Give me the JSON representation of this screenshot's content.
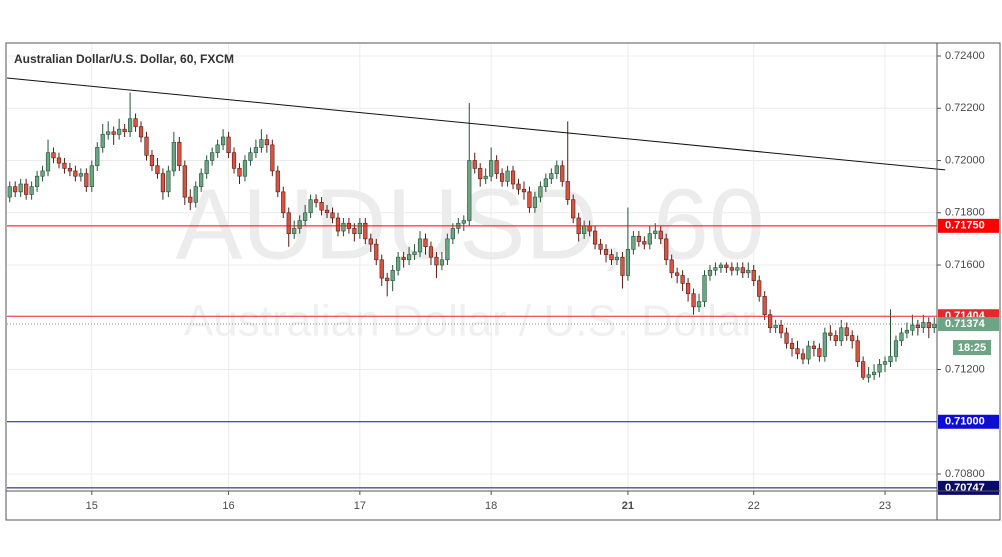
{
  "chart_data": {
    "type": "candlestick",
    "title": "Australian Dollar/U.S. Dollar, 60, FXCM",
    "watermark": "AUDUSD, 60",
    "watermark_subtitle": "Australian Dollar / U.S. Dollar",
    "up_color": "#6ba583",
    "up_border": "#225437",
    "down_color": "#d75442",
    "down_border": "#5b1a13",
    "ylim": [
      0.70735,
      0.72446
    ],
    "yticks": [
      {
        "value": 0.724,
        "label": "0.72400"
      },
      {
        "value": 0.722,
        "label": "0.72200"
      },
      {
        "value": 0.72,
        "label": "0.72000"
      },
      {
        "value": 0.718,
        "label": "0.71800"
      },
      {
        "value": 0.716,
        "label": "0.71600"
      },
      {
        "value": 0.712,
        "label": "0.71200"
      },
      {
        "value": 0.708,
        "label": "0.70800"
      }
    ],
    "grid": true,
    "levels": [
      {
        "value": 0.7175,
        "label": "0.71750",
        "color": "#ff0000"
      },
      {
        "value": 0.71404,
        "label": "0.71404",
        "color": "#e8272b"
      },
      {
        "value": 0.71,
        "label": "0.71000",
        "color": "#0d0dd4"
      },
      {
        "value": 0.70747,
        "label": "0.70747",
        "color": "#0a0a6e"
      }
    ],
    "last": {
      "value": 0.71374,
      "label": "0.71374",
      "timer": "18:25",
      "color": "#6ba583"
    },
    "trendline": {
      "x": [
        -0.5,
        171
      ],
      "values": [
        0.72316,
        0.71964
      ],
      "color": "#111111"
    },
    "categories": [
      null,
      null,
      null,
      null,
      null,
      null,
      null,
      null,
      null,
      null,
      null,
      null,
      null,
      null,
      null,
      "15",
      null,
      null,
      null,
      null,
      null,
      null,
      null,
      null,
      null,
      null,
      null,
      null,
      null,
      null,
      null,
      null,
      null,
      null,
      null,
      null,
      null,
      null,
      null,
      null,
      "16",
      null,
      null,
      null,
      null,
      null,
      null,
      null,
      null,
      null,
      null,
      null,
      null,
      null,
      null,
      null,
      null,
      null,
      null,
      null,
      null,
      null,
      null,
      null,
      "17",
      null,
      null,
      null,
      null,
      null,
      null,
      null,
      null,
      null,
      null,
      null,
      null,
      null,
      null,
      null,
      null,
      null,
      null,
      null,
      null,
      null,
      null,
      null,
      "18",
      null,
      null,
      null,
      null,
      null,
      null,
      null,
      null,
      null,
      null,
      null,
      null,
      null,
      null,
      null,
      null,
      null,
      null,
      null,
      null,
      null,
      null,
      null,
      null,
      "21",
      null,
      null,
      null,
      null,
      null,
      null,
      null,
      null,
      null,
      null,
      null,
      null,
      null,
      null,
      null,
      null,
      null,
      null,
      null,
      null,
      null,
      null,
      "22",
      null,
      null,
      null,
      null,
      null,
      null,
      null,
      null,
      null,
      null,
      null,
      null,
      null,
      null,
      null,
      null,
      null,
      null,
      null,
      null,
      null,
      null,
      null,
      "23",
      null,
      null,
      null,
      null,
      null,
      null,
      null,
      null,
      null
    ],
    "ohlc": [
      [
        0.7186,
        0.7192,
        0.7184,
        0.719
      ],
      [
        0.719,
        0.7192,
        0.7186,
        0.7188
      ],
      [
        0.7188,
        0.7193,
        0.7186,
        0.7191
      ],
      [
        0.7191,
        0.7193,
        0.7185,
        0.7187
      ],
      [
        0.7187,
        0.7192,
        0.7185,
        0.719
      ],
      [
        0.719,
        0.7196,
        0.7188,
        0.7194
      ],
      [
        0.7194,
        0.7198,
        0.7192,
        0.7196
      ],
      [
        0.7196,
        0.7208,
        0.7194,
        0.7203
      ],
      [
        0.7203,
        0.7205,
        0.7199,
        0.7201
      ],
      [
        0.7201,
        0.7203,
        0.7197,
        0.7199
      ],
      [
        0.7199,
        0.7201,
        0.7195,
        0.7197
      ],
      [
        0.7197,
        0.7199,
        0.7194,
        0.7196
      ],
      [
        0.7196,
        0.7198,
        0.7192,
        0.7194
      ],
      [
        0.7194,
        0.7197,
        0.7192,
        0.7195
      ],
      [
        0.7195,
        0.7197,
        0.7188,
        0.719
      ],
      [
        0.719,
        0.72,
        0.7188,
        0.7198
      ],
      [
        0.7198,
        0.7207,
        0.7196,
        0.7205
      ],
      [
        0.7205,
        0.7214,
        0.7203,
        0.721
      ],
      [
        0.721,
        0.7215,
        0.7208,
        0.7211
      ],
      [
        0.7211,
        0.7213,
        0.7206,
        0.721
      ],
      [
        0.721,
        0.7216,
        0.7208,
        0.7212
      ],
      [
        0.7212,
        0.7214,
        0.7209,
        0.7211
      ],
      [
        0.7211,
        0.7226,
        0.7209,
        0.7216
      ],
      [
        0.7216,
        0.7218,
        0.7211,
        0.7213
      ],
      [
        0.7213,
        0.7215,
        0.7207,
        0.7209
      ],
      [
        0.7209,
        0.7211,
        0.72,
        0.7202
      ],
      [
        0.7202,
        0.7204,
        0.7196,
        0.7198
      ],
      [
        0.7198,
        0.7201,
        0.7193,
        0.7195
      ],
      [
        0.7195,
        0.7197,
        0.7185,
        0.7188
      ],
      [
        0.7188,
        0.7198,
        0.7186,
        0.7196
      ],
      [
        0.7196,
        0.7211,
        0.7194,
        0.7207
      ],
      [
        0.7207,
        0.7209,
        0.7196,
        0.7198
      ],
      [
        0.7198,
        0.72,
        0.7183,
        0.7186
      ],
      [
        0.7186,
        0.7189,
        0.7181,
        0.7184
      ],
      [
        0.7184,
        0.7192,
        0.7182,
        0.719
      ],
      [
        0.719,
        0.7197,
        0.7188,
        0.7195
      ],
      [
        0.7195,
        0.7202,
        0.7193,
        0.72
      ],
      [
        0.72,
        0.7205,
        0.7198,
        0.7203
      ],
      [
        0.7203,
        0.7208,
        0.7201,
        0.7206
      ],
      [
        0.7206,
        0.7212,
        0.7204,
        0.7209
      ],
      [
        0.7209,
        0.7211,
        0.7201,
        0.7203
      ],
      [
        0.7203,
        0.7205,
        0.7195,
        0.7197
      ],
      [
        0.7197,
        0.7199,
        0.7191,
        0.7194
      ],
      [
        0.7194,
        0.7202,
        0.7192,
        0.72
      ],
      [
        0.72,
        0.7205,
        0.7198,
        0.7203
      ],
      [
        0.7203,
        0.7208,
        0.7201,
        0.7205
      ],
      [
        0.7205,
        0.7212,
        0.7203,
        0.7208
      ],
      [
        0.7208,
        0.721,
        0.7203,
        0.7206
      ],
      [
        0.7206,
        0.7208,
        0.7194,
        0.7196
      ],
      [
        0.7196,
        0.7198,
        0.7186,
        0.7188
      ],
      [
        0.7188,
        0.719,
        0.7178,
        0.718
      ],
      [
        0.718,
        0.7182,
        0.7167,
        0.7172
      ],
      [
        0.7172,
        0.7177,
        0.717,
        0.7174
      ],
      [
        0.7174,
        0.7179,
        0.7172,
        0.7177
      ],
      [
        0.7177,
        0.7183,
        0.7175,
        0.718
      ],
      [
        0.718,
        0.7187,
        0.7178,
        0.7185
      ],
      [
        0.7185,
        0.7187,
        0.7182,
        0.7184
      ],
      [
        0.7184,
        0.7186,
        0.7179,
        0.7181
      ],
      [
        0.7181,
        0.7183,
        0.7178,
        0.718
      ],
      [
        0.718,
        0.7182,
        0.7176,
        0.7178
      ],
      [
        0.7178,
        0.718,
        0.7171,
        0.7173
      ],
      [
        0.7173,
        0.7178,
        0.7171,
        0.7176
      ],
      [
        0.7176,
        0.7178,
        0.7172,
        0.7174
      ],
      [
        0.7174,
        0.7176,
        0.7169,
        0.7172
      ],
      [
        0.7172,
        0.7178,
        0.717,
        0.7176
      ],
      [
        0.7176,
        0.7178,
        0.7168,
        0.717
      ],
      [
        0.717,
        0.7172,
        0.7165,
        0.7168
      ],
      [
        0.7168,
        0.717,
        0.716,
        0.7162
      ],
      [
        0.7162,
        0.7164,
        0.7152,
        0.7155
      ],
      [
        0.7155,
        0.7157,
        0.7148,
        0.7154
      ],
      [
        0.7154,
        0.716,
        0.715,
        0.7158
      ],
      [
        0.7158,
        0.7165,
        0.7156,
        0.7163
      ],
      [
        0.7163,
        0.7165,
        0.7159,
        0.7162
      ],
      [
        0.7162,
        0.7167,
        0.716,
        0.7164
      ],
      [
        0.7164,
        0.7168,
        0.7162,
        0.7165
      ],
      [
        0.7165,
        0.7173,
        0.7163,
        0.717
      ],
      [
        0.717,
        0.7172,
        0.7164,
        0.7167
      ],
      [
        0.7167,
        0.7169,
        0.716,
        0.7163
      ],
      [
        0.7163,
        0.7165,
        0.7155,
        0.716
      ],
      [
        0.716,
        0.7165,
        0.7158,
        0.7162
      ],
      [
        0.7162,
        0.7172,
        0.716,
        0.717
      ],
      [
        0.717,
        0.7176,
        0.7168,
        0.7174
      ],
      [
        0.7174,
        0.7178,
        0.7172,
        0.7176
      ],
      [
        0.7176,
        0.7179,
        0.7173,
        0.7177
      ],
      [
        0.7177,
        0.7222,
        0.7175,
        0.72
      ],
      [
        0.72,
        0.7203,
        0.7195,
        0.7197
      ],
      [
        0.7197,
        0.7199,
        0.719,
        0.7193
      ],
      [
        0.7193,
        0.7197,
        0.7191,
        0.7194
      ],
      [
        0.7194,
        0.7205,
        0.7192,
        0.72
      ],
      [
        0.72,
        0.7202,
        0.7193,
        0.7195
      ],
      [
        0.7195,
        0.7197,
        0.719,
        0.7192
      ],
      [
        0.7192,
        0.7198,
        0.719,
        0.7196
      ],
      [
        0.7196,
        0.7198,
        0.7189,
        0.7191
      ],
      [
        0.7191,
        0.7193,
        0.7187,
        0.7189
      ],
      [
        0.7189,
        0.7192,
        0.7185,
        0.7188
      ],
      [
        0.7188,
        0.719,
        0.718,
        0.7182
      ],
      [
        0.7182,
        0.7188,
        0.718,
        0.7186
      ],
      [
        0.7186,
        0.7192,
        0.7184,
        0.719
      ],
      [
        0.719,
        0.7195,
        0.7188,
        0.7193
      ],
      [
        0.7193,
        0.7197,
        0.7191,
        0.7195
      ],
      [
        0.7195,
        0.72,
        0.7193,
        0.7198
      ],
      [
        0.7198,
        0.72,
        0.719,
        0.7192
      ],
      [
        0.7192,
        0.7215,
        0.7183,
        0.7185
      ],
      [
        0.7185,
        0.7187,
        0.7176,
        0.7178
      ],
      [
        0.7178,
        0.718,
        0.7169,
        0.7172
      ],
      [
        0.7172,
        0.7177,
        0.717,
        0.7175
      ],
      [
        0.7175,
        0.7177,
        0.7171,
        0.7173
      ],
      [
        0.7173,
        0.7175,
        0.7166,
        0.7168
      ],
      [
        0.7168,
        0.717,
        0.7164,
        0.7166
      ],
      [
        0.7166,
        0.7168,
        0.7161,
        0.7164
      ],
      [
        0.7164,
        0.7166,
        0.716,
        0.7162
      ],
      [
        0.7162,
        0.7165,
        0.716,
        0.7163
      ],
      [
        0.7163,
        0.7165,
        0.7151,
        0.7156
      ],
      [
        0.7156,
        0.7182,
        0.7154,
        0.7166
      ],
      [
        0.7166,
        0.7173,
        0.7164,
        0.7171
      ],
      [
        0.7171,
        0.7173,
        0.7167,
        0.7169
      ],
      [
        0.7169,
        0.7171,
        0.7166,
        0.7168
      ],
      [
        0.7168,
        0.7175,
        0.7166,
        0.7172
      ],
      [
        0.7172,
        0.7176,
        0.717,
        0.7173
      ],
      [
        0.7173,
        0.7175,
        0.7168,
        0.717
      ],
      [
        0.717,
        0.7172,
        0.716,
        0.7162
      ],
      [
        0.7162,
        0.7164,
        0.7155,
        0.7157
      ],
      [
        0.7157,
        0.7159,
        0.7153,
        0.7156
      ],
      [
        0.7156,
        0.7158,
        0.715,
        0.7153
      ],
      [
        0.7153,
        0.7155,
        0.7146,
        0.7149
      ],
      [
        0.7149,
        0.7151,
        0.7141,
        0.7144
      ],
      [
        0.7144,
        0.7149,
        0.7142,
        0.7146
      ],
      [
        0.7146,
        0.7158,
        0.7144,
        0.7156
      ],
      [
        0.7156,
        0.716,
        0.7154,
        0.7158
      ],
      [
        0.7158,
        0.7161,
        0.7156,
        0.7159
      ],
      [
        0.7159,
        0.7161,
        0.7157,
        0.716
      ],
      [
        0.716,
        0.7161,
        0.7157,
        0.7159
      ],
      [
        0.7159,
        0.7161,
        0.7156,
        0.7158
      ],
      [
        0.7158,
        0.7161,
        0.7156,
        0.7159
      ],
      [
        0.7159,
        0.7161,
        0.7155,
        0.7157
      ],
      [
        0.7157,
        0.7161,
        0.7155,
        0.7158
      ],
      [
        0.7158,
        0.716,
        0.7152,
        0.7154
      ],
      [
        0.7154,
        0.7156,
        0.7146,
        0.7148
      ],
      [
        0.7148,
        0.715,
        0.7139,
        0.7141
      ],
      [
        0.7141,
        0.7143,
        0.7134,
        0.7136
      ],
      [
        0.7136,
        0.7139,
        0.7134,
        0.7137
      ],
      [
        0.7137,
        0.7139,
        0.7132,
        0.7134
      ],
      [
        0.7134,
        0.7136,
        0.7128,
        0.713
      ],
      [
        0.713,
        0.7132,
        0.7125,
        0.7128
      ],
      [
        0.7128,
        0.7131,
        0.7124,
        0.7126
      ],
      [
        0.7126,
        0.7128,
        0.7122,
        0.7124
      ],
      [
        0.7124,
        0.7131,
        0.7122,
        0.7129
      ],
      [
        0.7129,
        0.7131,
        0.7125,
        0.7128
      ],
      [
        0.7128,
        0.713,
        0.7123,
        0.7125
      ],
      [
        0.7125,
        0.7136,
        0.7123,
        0.7134
      ],
      [
        0.7134,
        0.7137,
        0.7131,
        0.7133
      ],
      [
        0.7133,
        0.7135,
        0.7129,
        0.7131
      ],
      [
        0.7131,
        0.7139,
        0.7129,
        0.7136
      ],
      [
        0.7136,
        0.7138,
        0.7131,
        0.7133
      ],
      [
        0.7133,
        0.7135,
        0.7128,
        0.7131
      ],
      [
        0.7131,
        0.7133,
        0.7121,
        0.7123
      ],
      [
        0.7123,
        0.7125,
        0.7116,
        0.7117
      ],
      [
        0.7117,
        0.7121,
        0.7115,
        0.7118
      ],
      [
        0.7118,
        0.7122,
        0.7116,
        0.7119
      ],
      [
        0.7119,
        0.7124,
        0.7117,
        0.7122
      ],
      [
        0.7122,
        0.7125,
        0.7119,
        0.7123
      ],
      [
        0.7123,
        0.7143,
        0.7121,
        0.7125
      ],
      [
        0.7125,
        0.7133,
        0.7123,
        0.7131
      ],
      [
        0.7131,
        0.7136,
        0.7129,
        0.7134
      ],
      [
        0.7134,
        0.7138,
        0.7132,
        0.7135
      ],
      [
        0.7135,
        0.7141,
        0.7133,
        0.7137
      ],
      [
        0.7137,
        0.7139,
        0.7133,
        0.7136
      ],
      [
        0.7136,
        0.7141,
        0.7134,
        0.7138
      ],
      [
        0.7138,
        0.714,
        0.7132,
        0.7136
      ],
      [
        0.7136,
        0.714,
        0.7134,
        0.71374
      ]
    ]
  }
}
